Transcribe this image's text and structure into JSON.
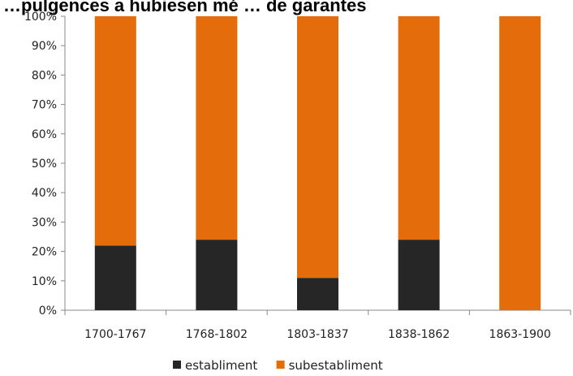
{
  "chart_data": {
    "type": "bar",
    "stacked": true,
    "percent_stacked": true,
    "title": "…pulgences a hubiesen mé … de garantes",
    "categories": [
      "1700-1767",
      "1768-1802",
      "1803-1837",
      "1838-1862",
      "1863-1900"
    ],
    "series": [
      {
        "name": "establiment",
        "color": "#262626",
        "values": [
          22,
          24,
          11,
          24,
          0
        ]
      },
      {
        "name": "subestabliment",
        "color": "#E46C0A",
        "values": [
          78,
          76,
          89,
          76,
          100
        ]
      }
    ],
    "ylim": [
      0,
      100
    ],
    "yticks": [
      "0%",
      "10%",
      "20%",
      "30%",
      "40%",
      "50%",
      "60%",
      "70%",
      "80%",
      "90%",
      "100%"
    ],
    "grid": false,
    "legend_position": "bottom"
  }
}
